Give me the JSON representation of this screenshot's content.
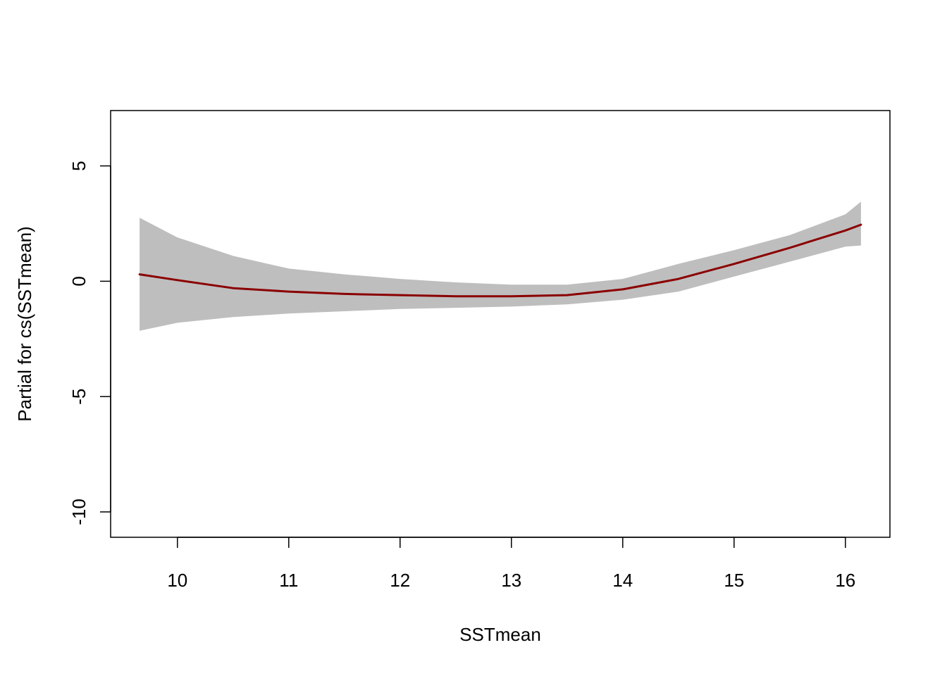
{
  "chart_data": {
    "type": "line",
    "title": "",
    "xlabel": "SSTmean",
    "ylabel": "Partial for cs(SSTmean)",
    "xlim": [
      9.4,
      16.4
    ],
    "ylim": [
      -11.1,
      7.4
    ],
    "x_ticks": [
      10,
      11,
      12,
      13,
      14,
      15,
      16
    ],
    "y_ticks": [
      -10,
      -5,
      0,
      5
    ],
    "x_tick_labels": [
      "10",
      "11",
      "12",
      "13",
      "14",
      "15",
      "16"
    ],
    "y_tick_labels": [
      "-10",
      "-5",
      "0",
      "5"
    ],
    "grid": false,
    "legend": "none",
    "colors": {
      "line": "#8b0000",
      "band": "#bebebe",
      "axis": "#000000"
    },
    "series": [
      {
        "x": [
          9.66,
          10.0,
          10.5,
          11.0,
          11.5,
          12.0,
          12.5,
          13.0,
          13.5,
          14.0,
          14.5,
          15.0,
          15.5,
          16.0,
          16.14
        ],
        "y": [
          0.3,
          0.05,
          -0.3,
          -0.45,
          -0.55,
          -0.6,
          -0.65,
          -0.65,
          -0.6,
          -0.35,
          0.1,
          0.75,
          1.45,
          2.2,
          2.45
        ],
        "upper": [
          2.75,
          1.9,
          1.1,
          0.55,
          0.3,
          0.1,
          -0.05,
          -0.15,
          -0.15,
          0.1,
          0.75,
          1.35,
          2.0,
          2.9,
          3.45
        ],
        "lower": [
          -2.15,
          -1.8,
          -1.55,
          -1.4,
          -1.3,
          -1.2,
          -1.15,
          -1.1,
          -1.0,
          -0.8,
          -0.45,
          0.2,
          0.85,
          1.5,
          1.55
        ]
      }
    ]
  }
}
